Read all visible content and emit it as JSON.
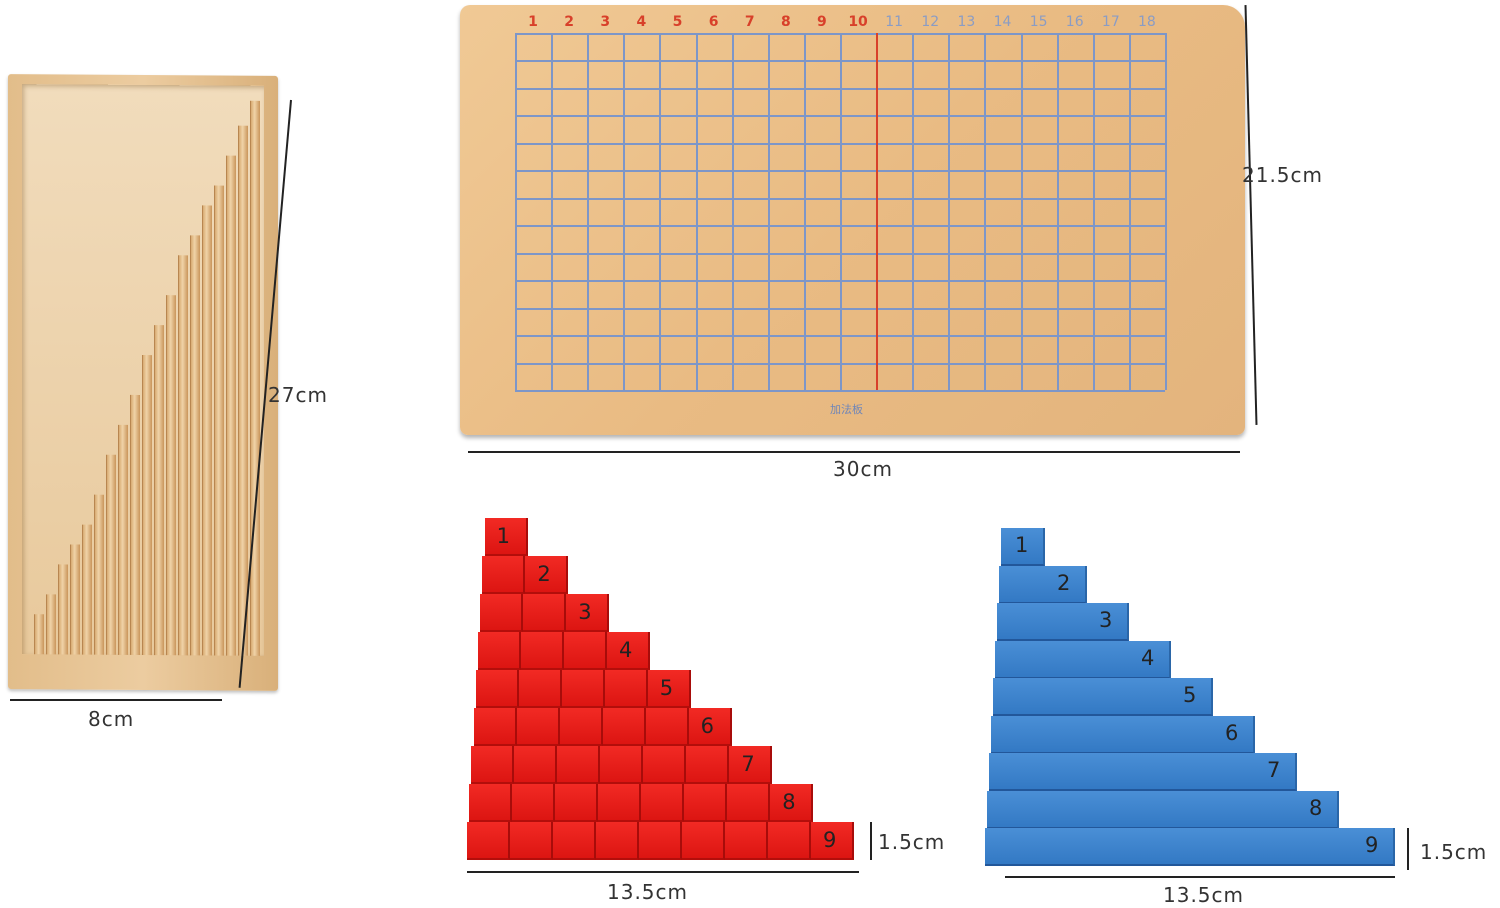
{
  "box": {
    "height_label": "27cm",
    "width_label": "8cm"
  },
  "board": {
    "column_numbers": [
      "1",
      "2",
      "3",
      "4",
      "5",
      "6",
      "7",
      "8",
      "9",
      "10",
      "11",
      "12",
      "13",
      "14",
      "15",
      "16",
      "17",
      "18"
    ],
    "red_numbers_through": 10,
    "rows": 13,
    "board_title": "加法板",
    "height_label": "21.5cm",
    "width_label": "30cm"
  },
  "red_strips": {
    "numbers": [
      "1",
      "2",
      "3",
      "4",
      "5",
      "6",
      "7",
      "8",
      "9"
    ],
    "color": "#e81c17",
    "length_label": "13.5cm",
    "height_label": "1.5cm"
  },
  "blue_strips": {
    "numbers": [
      "1",
      "2",
      "3",
      "4",
      "5",
      "6",
      "7",
      "8",
      "9"
    ],
    "color": "#3d84cd",
    "length_label": "13.5cm",
    "height_label": "1.5cm"
  },
  "colors": {
    "wood": "#e9bb83",
    "grid": "#7d96c8",
    "red_numbers": "#d8402a",
    "center_line": "#d8402a"
  }
}
